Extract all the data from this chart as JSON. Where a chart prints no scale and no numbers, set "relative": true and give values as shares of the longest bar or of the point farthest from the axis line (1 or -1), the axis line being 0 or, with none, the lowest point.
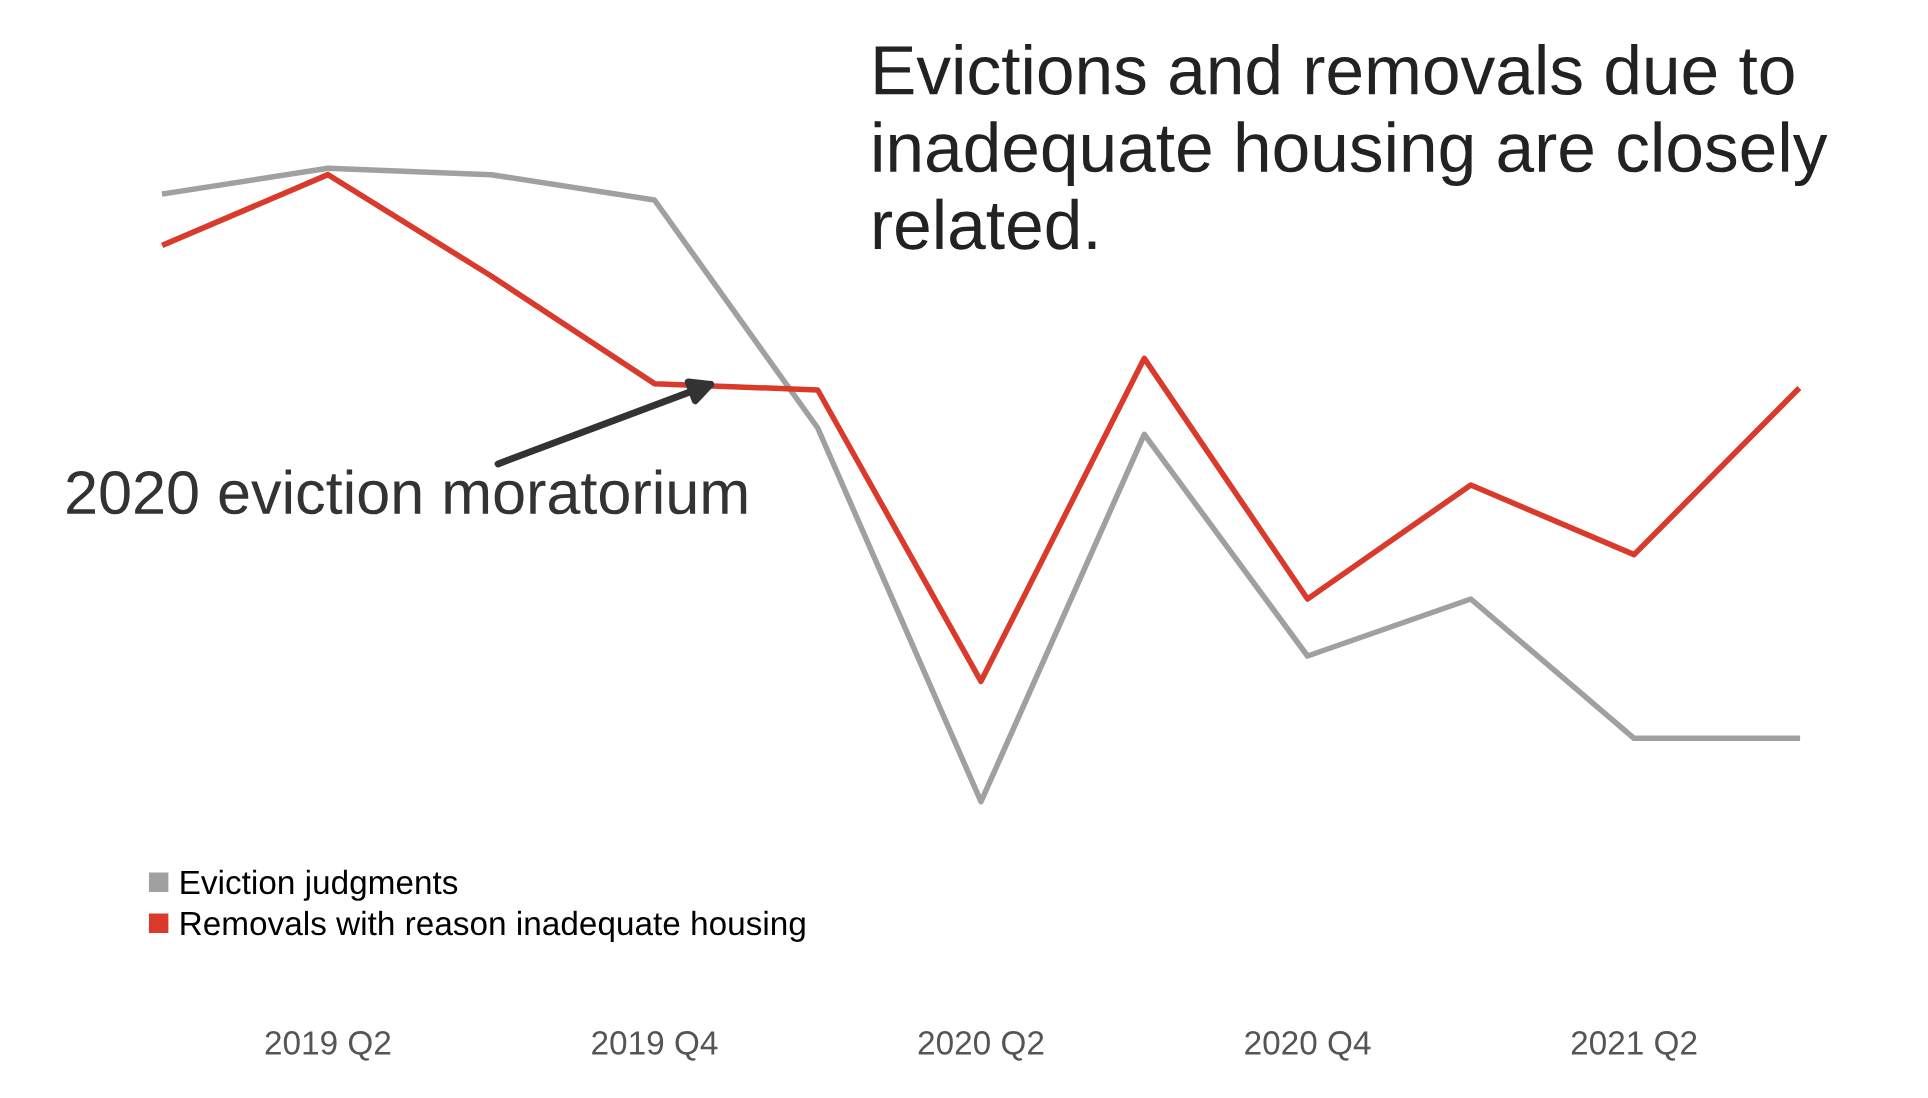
{
  "chart_data": {
    "type": "line",
    "relative": true,
    "title": "Evictions and removals due to inadequate housing are closely related.",
    "annotations": [
      "2020 eviction moratorium"
    ],
    "categories": [
      null,
      "2019 Q2",
      null,
      "2019 Q4",
      null,
      "2020 Q2",
      null,
      "2020 Q4",
      null,
      "2021 Q2",
      null
    ],
    "series": [
      {
        "name": "Eviction judgments",
        "color": "#a0a0a0",
        "values": [
          0.96,
          1,
          0.99,
          0.95,
          0.59,
          0,
          0.58,
          0.23,
          0.32,
          0.1,
          0.1
        ]
      },
      {
        "name": "Removals with reason inadequate housing",
        "color": "#d93a2b",
        "values": [
          0.88,
          0.99,
          0.83,
          0.66,
          0.65,
          0.19,
          0.7,
          0.32,
          0.5,
          0.39,
          0.65
        ]
      }
    ],
    "legend": "bottom left",
    "grid": false,
    "marker": "none",
    "line_style": "solid"
  }
}
